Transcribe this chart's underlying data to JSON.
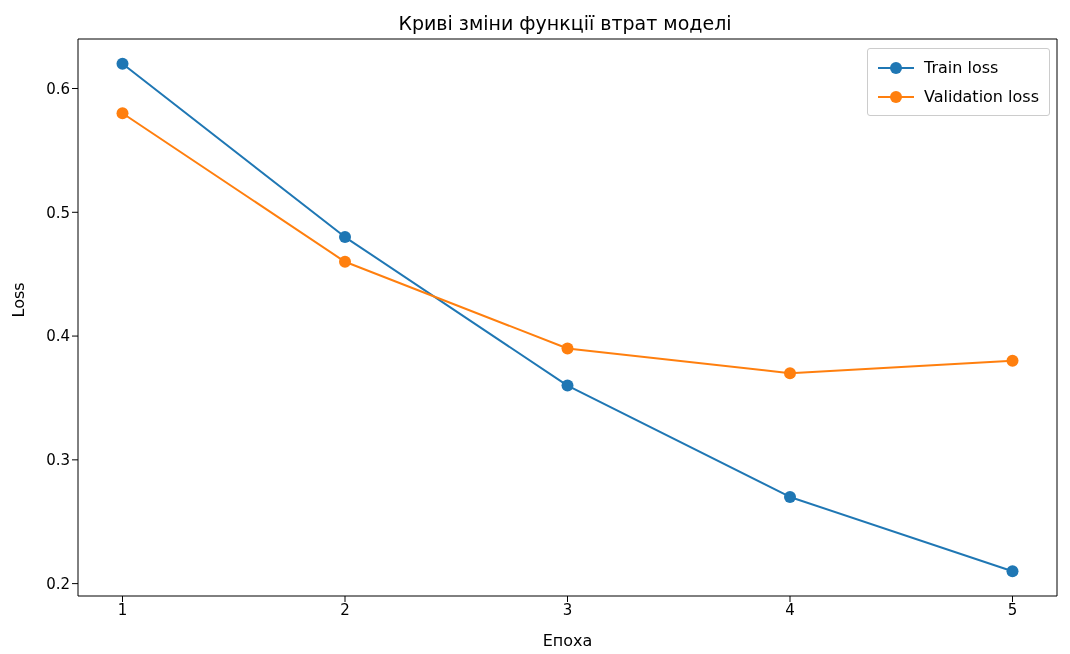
{
  "chart_data": {
    "type": "line",
    "title": "Криві зміни функції втрат моделі",
    "xlabel": "Епоха",
    "ylabel": "Loss",
    "x": [
      1,
      2,
      3,
      4,
      5
    ],
    "series": [
      {
        "name": "Train loss",
        "color": "#1f77b4",
        "values": [
          0.62,
          0.48,
          0.36,
          0.27,
          0.21
        ]
      },
      {
        "name": "Validation loss",
        "color": "#ff7f0e",
        "values": [
          0.58,
          0.46,
          0.39,
          0.37,
          0.38
        ]
      }
    ],
    "xlim": [
      0.8,
      5.2
    ],
    "ylim": [
      0.19,
      0.64
    ],
    "xticks": [
      1,
      2,
      3,
      4,
      5
    ],
    "yticks": [
      0.2,
      0.3,
      0.4,
      0.5,
      0.6
    ],
    "legend": "top right",
    "marker": "circle",
    "line_style": "solid"
  }
}
